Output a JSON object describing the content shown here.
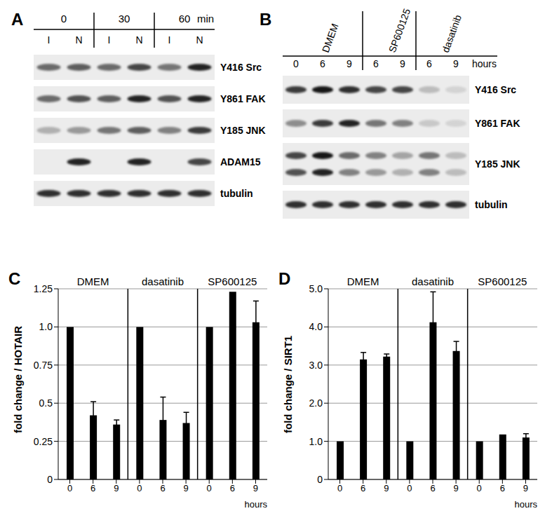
{
  "panels": [
    {
      "label": "A",
      "type": "blot",
      "groups": [
        {
          "name": "0",
          "lanes": [
            "I",
            "N"
          ]
        },
        {
          "name": "30",
          "lanes": [
            "I",
            "N"
          ]
        },
        {
          "name": "60",
          "lanes": [
            "I",
            "N"
          ]
        }
      ],
      "unit": "min",
      "rows": [
        {
          "name": "Y416 Src",
          "bands": [
            0.55,
            0.6,
            0.55,
            0.7,
            0.5,
            0.85
          ]
        },
        {
          "name": "Y861 FAK",
          "bands": [
            0.55,
            0.65,
            0.6,
            0.85,
            0.65,
            0.85
          ]
        },
        {
          "name": "Y185 JNK",
          "bands": [
            0.25,
            0.35,
            0.5,
            0.6,
            0.45,
            0.75
          ]
        },
        {
          "name": "ADAM15",
          "bands": [
            0,
            0.85,
            0,
            0.85,
            0,
            0.7
          ]
        },
        {
          "name": "tubulin",
          "bands": [
            0.8,
            0.8,
            0.8,
            0.8,
            0.8,
            0.8
          ]
        }
      ]
    },
    {
      "label": "B",
      "type": "blot",
      "groups": [
        {
          "name": "DMEM",
          "lanes": [
            "0",
            "6",
            "9"
          ]
        },
        {
          "name": "SP600125",
          "lanes": [
            "6",
            "9"
          ]
        },
        {
          "name": "dasatinib",
          "lanes": [
            "6",
            "9"
          ]
        }
      ],
      "unit": "hours",
      "rows": [
        {
          "name": "Y416 Src",
          "bands": [
            0.75,
            0.9,
            0.8,
            0.7,
            0.7,
            0.2,
            0.1
          ]
        },
        {
          "name": "Y861 FAK",
          "bands": [
            0.4,
            0.75,
            0.85,
            0.5,
            0.45,
            0.15,
            0.1
          ]
        },
        {
          "name": "Y185 JNK",
          "bands": [
            0.7,
            0.9,
            0.55,
            0.45,
            0.3,
            0.5,
            0.2
          ],
          "bands_lower": [
            0.65,
            0.85,
            0.45,
            0.35,
            0.25,
            0.45,
            0.2
          ]
        },
        {
          "name": "tubulin",
          "bands": [
            0.8,
            0.8,
            0.8,
            0.8,
            0.8,
            0.8,
            0.8
          ]
        }
      ]
    }
  ],
  "chart_data": [
    {
      "type": "bar",
      "title": "C",
      "y_label": "fold change / HOTAIR",
      "x_label": "hours",
      "groups": [
        "DMEM",
        "dasatinib",
        "SP600125"
      ],
      "categories": [
        "0",
        "6",
        "9",
        "0",
        "6",
        "9",
        "0",
        "6",
        "9"
      ],
      "values": [
        1.0,
        0.42,
        0.36,
        1.0,
        0.39,
        0.37,
        1.0,
        1.23,
        1.03
      ],
      "errors": [
        null,
        0.09,
        0.03,
        null,
        0.15,
        0.07,
        null,
        null,
        0.14
      ],
      "color": "#000000",
      "ylim": [
        0,
        1.25
      ],
      "yticks": [
        0,
        0.25,
        0.5,
        0.75,
        {
          "value": 1,
          "label": "1.0"
        },
        1.25
      ],
      "grid": true
    },
    {
      "type": "bar",
      "title": "D",
      "y_label": "fold change / SIRT1",
      "x_label": "hours",
      "groups": [
        "DMEM",
        "dasatinib",
        "SP600125"
      ],
      "categories": [
        "0",
        "6",
        "9",
        "0",
        "6",
        "9",
        "0",
        "6",
        "9"
      ],
      "values": [
        1.0,
        3.15,
        3.22,
        1.0,
        4.12,
        3.37,
        1.0,
        1.18,
        1.1
      ],
      "errors": [
        null,
        0.18,
        0.07,
        null,
        0.8,
        0.25,
        null,
        null,
        0.1
      ],
      "color": "#000000",
      "ylim": [
        0,
        5
      ],
      "yticks": [
        0,
        {
          "value": 1,
          "label": "1.0"
        },
        {
          "value": 2,
          "label": "2.0"
        },
        {
          "value": 3,
          "label": "3.0"
        },
        {
          "value": 4,
          "label": "4.0"
        },
        {
          "value": 5,
          "label": "5.0"
        }
      ],
      "grid": true
    }
  ]
}
